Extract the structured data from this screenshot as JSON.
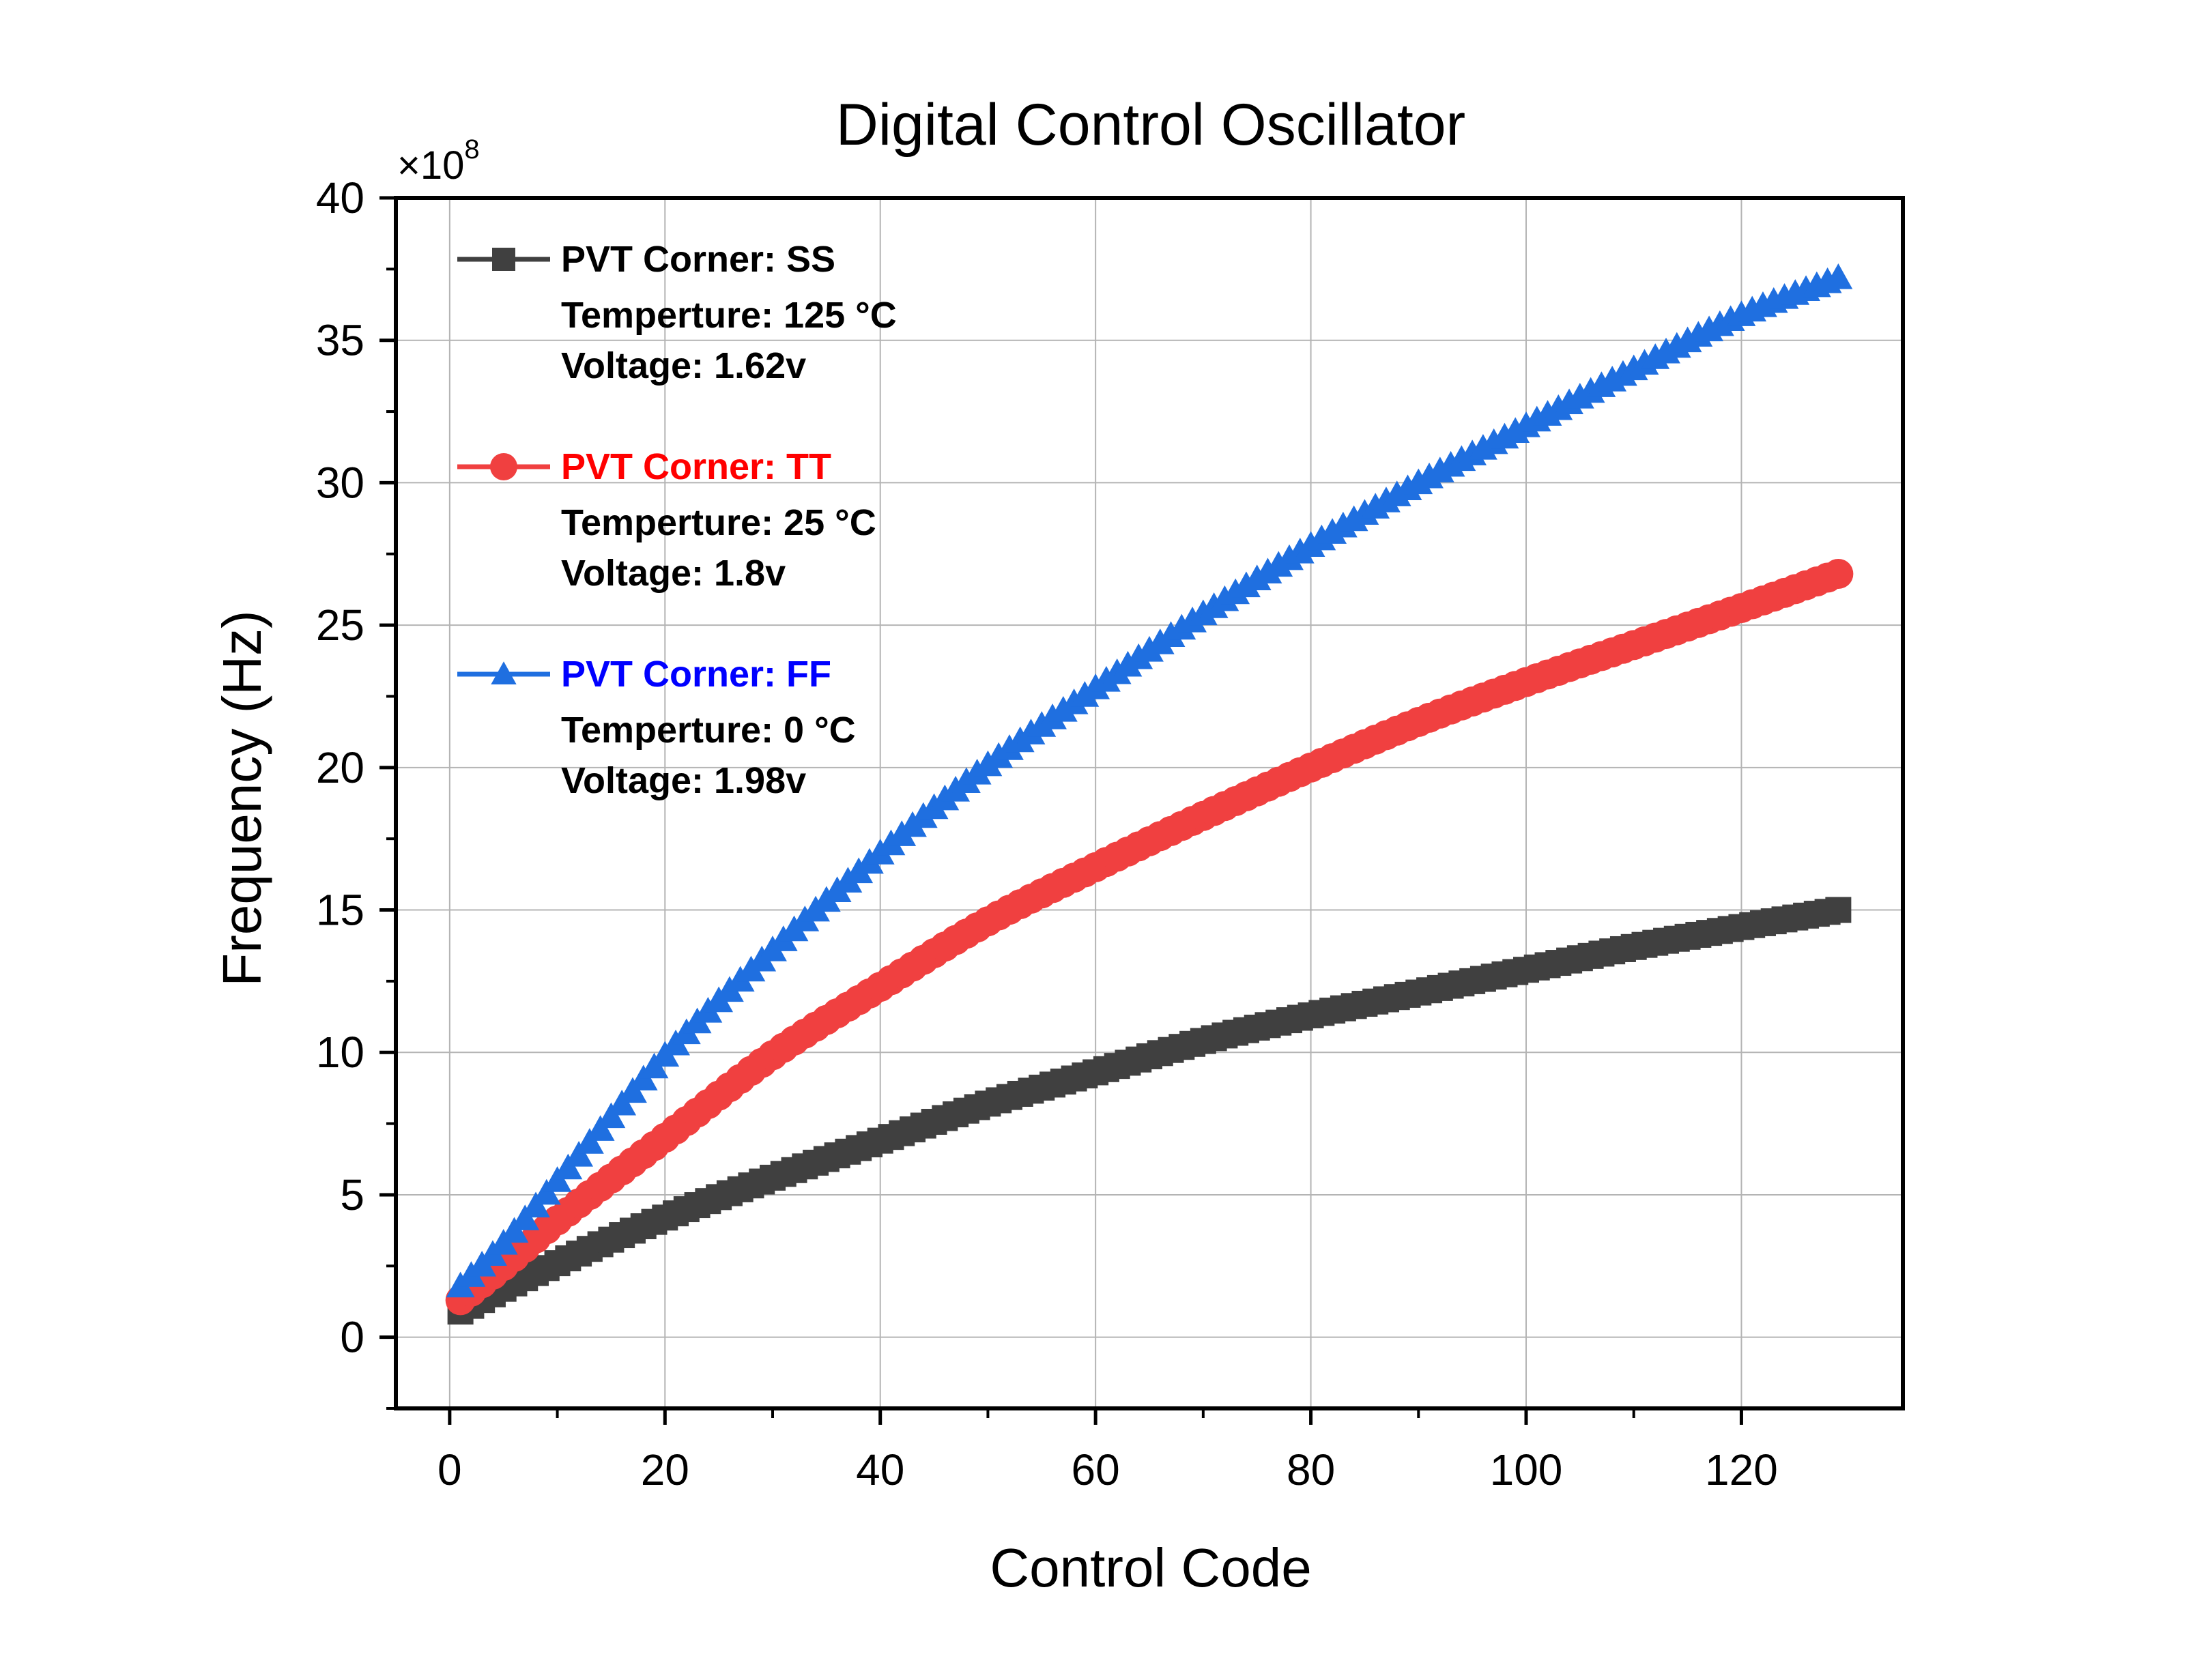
{
  "chart_data": {
    "type": "scatter",
    "title": "Digital Control Oscillator",
    "xlabel": "Control Code",
    "ylabel": "Frequency (Hz)",
    "y_multiplier": {
      "base": "×10",
      "exp": "8"
    },
    "xlim": [
      -5,
      135
    ],
    "ylim": [
      -2.5,
      40
    ],
    "x_ticks": [
      0,
      20,
      40,
      60,
      80,
      100,
      120
    ],
    "y_ticks": [
      0,
      5,
      10,
      15,
      20,
      25,
      30,
      35,
      40
    ],
    "grid": true,
    "legend_position": "top-left",
    "series": [
      {
        "name": "PVT Corner: SS",
        "notes": [
          "Temperture: 125 °C",
          "Voltage: 1.62v"
        ],
        "color": "#404040",
        "label_color": "#000000",
        "marker": "square",
        "x_start": 1,
        "x_end": 129,
        "x_step": 1,
        "anchors_x": [
          1,
          5,
          10,
          20,
          30,
          40,
          50,
          60,
          70,
          80,
          90,
          100,
          110,
          120,
          129
        ],
        "anchors_y": [
          0.9,
          1.7,
          2.6,
          4.2,
          5.6,
          6.9,
          8.2,
          9.3,
          10.4,
          11.3,
          12.1,
          12.9,
          13.7,
          14.4,
          15.0
        ]
      },
      {
        "name": "PVT Corner: TT",
        "notes": [
          "Temperture: 25 °C",
          "Voltage: 1.8v"
        ],
        "color": "#f04040",
        "label_color": "#ff0000",
        "marker": "circle",
        "x_start": 1,
        "x_end": 129,
        "x_step": 1,
        "anchors_x": [
          1,
          5,
          10,
          20,
          30,
          40,
          50,
          60,
          70,
          80,
          90,
          100,
          110,
          120,
          129
        ],
        "anchors_y": [
          1.3,
          2.5,
          4.1,
          7.0,
          9.9,
          12.3,
          14.6,
          16.5,
          18.3,
          20.0,
          21.6,
          23.0,
          24.3,
          25.6,
          26.8
        ]
      },
      {
        "name": "PVT Corner: FF",
        "notes": [
          "Temperture: 0 °C",
          "Voltage: 1.98v"
        ],
        "color": "#1f6fe0",
        "label_color": "#0000ff",
        "marker": "triangle",
        "x_start": 1,
        "x_end": 129,
        "x_step": 1,
        "anchors_x": [
          1,
          5,
          10,
          20,
          30,
          40,
          50,
          60,
          70,
          80,
          90,
          100,
          110,
          120,
          129
        ],
        "anchors_y": [
          1.8,
          3.3,
          5.5,
          9.9,
          13.6,
          17.0,
          20.1,
          22.8,
          25.4,
          27.8,
          30.0,
          32.0,
          34.0,
          35.9,
          37.2
        ]
      }
    ]
  }
}
